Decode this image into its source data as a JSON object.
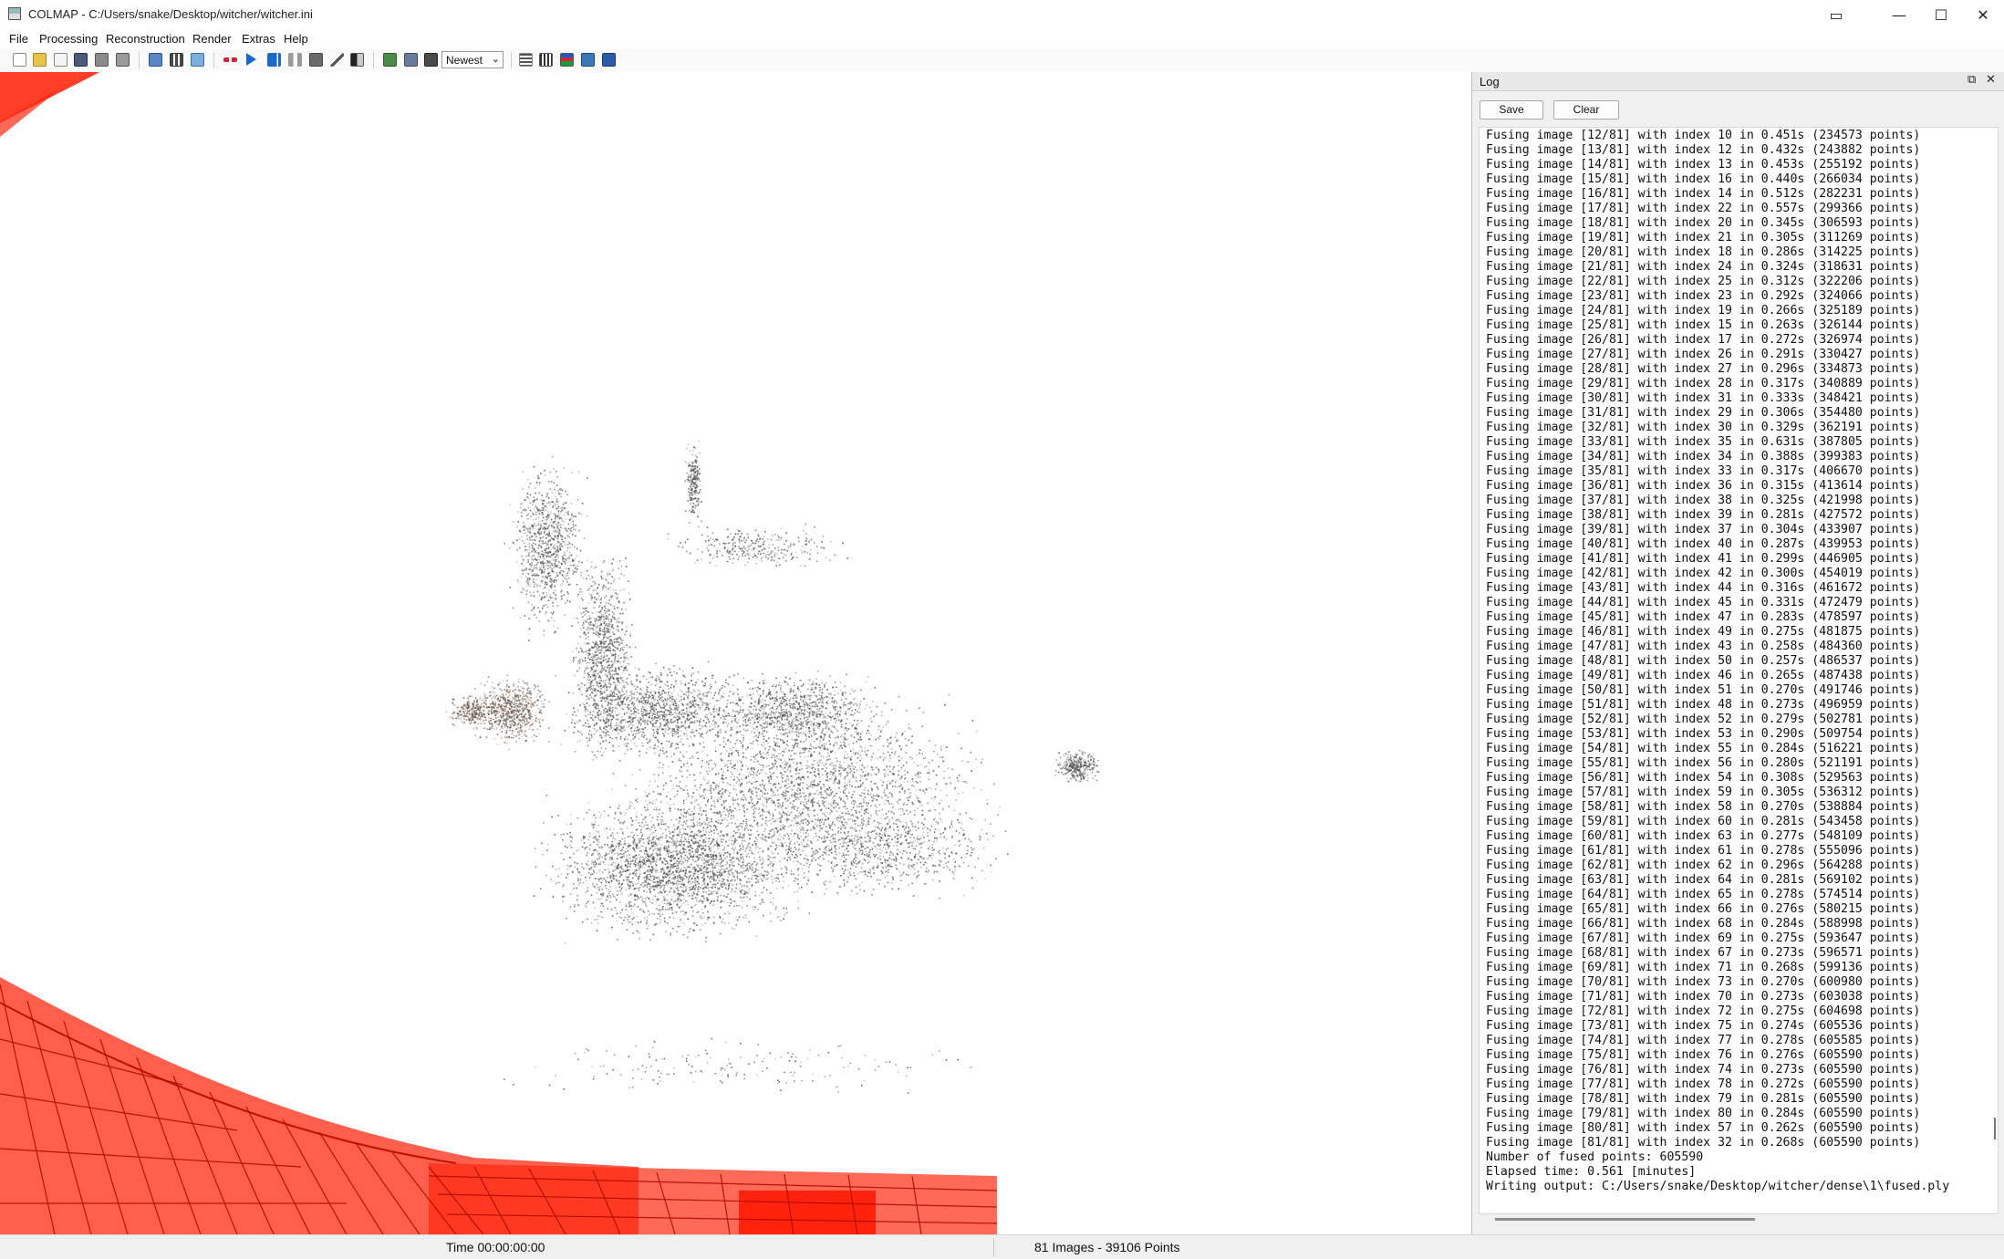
{
  "window": {
    "title": "COLMAP - C:/Users/snake/Desktop/witcher/witcher.ini"
  },
  "menu": [
    {
      "label": "File",
      "icon": ""
    },
    {
      "label": "Processing",
      "icon": ""
    },
    {
      "label": "Reconstruction",
      "icon": ""
    },
    {
      "label": "Render",
      "icon": ""
    },
    {
      "label": "Extras",
      "icon": ""
    },
    {
      "label": "Help",
      "icon": ""
    }
  ],
  "toolbar": {
    "icons": [
      "new-project-icon",
      "open-project-icon",
      "edit-project-icon",
      "save-project-icon",
      "import-icon",
      "export-icon",
      "feature-extraction-icon",
      "feature-matching-icon",
      "database-management-icon",
      "reconstruction-options-icon",
      "start-reconstruction-icon",
      "step-reconstruction-icon",
      "pause-reconstruction-icon",
      "bundle-adjustment-icon",
      "dense-reconstruction-icon",
      "render-options-icon",
      "render-toggle-icon",
      "grab-image-icon",
      "grab-movie-icon",
      "model-selector-icon",
      "reconstruction-stats-icon",
      "match-matrix-icon",
      "show-log-icon",
      "undistort-icon",
      "extras-icon",
      "help-icon"
    ],
    "model_select": "Newest"
  },
  "colors": {
    "camera_frame": "#ff2a10",
    "point_cloud": "#4a4a4a",
    "point_cloud_warm": "#7a5a48"
  },
  "log": {
    "title": "Log",
    "save_label": "Save",
    "clear_label": "Clear",
    "lines": [
      "Fusing image [12/81] with index 10 in 0.451s (234573 points)",
      "Fusing image [13/81] with index 12 in 0.432s (243882 points)",
      "Fusing image [14/81] with index 13 in 0.453s (255192 points)",
      "Fusing image [15/81] with index 16 in 0.440s (266034 points)",
      "Fusing image [16/81] with index 14 in 0.512s (282231 points)",
      "Fusing image [17/81] with index 22 in 0.557s (299366 points)",
      "Fusing image [18/81] with index 20 in 0.345s (306593 points)",
      "Fusing image [19/81] with index 21 in 0.305s (311269 points)",
      "Fusing image [20/81] with index 18 in 0.286s (314225 points)",
      "Fusing image [21/81] with index 24 in 0.324s (318631 points)",
      "Fusing image [22/81] with index 25 in 0.312s (322206 points)",
      "Fusing image [23/81] with index 23 in 0.292s (324066 points)",
      "Fusing image [24/81] with index 19 in 0.266s (325189 points)",
      "Fusing image [25/81] with index 15 in 0.263s (326144 points)",
      "Fusing image [26/81] with index 17 in 0.272s (326974 points)",
      "Fusing image [27/81] with index 26 in 0.291s (330427 points)",
      "Fusing image [28/81] with index 27 in 0.296s (334873 points)",
      "Fusing image [29/81] with index 28 in 0.317s (340889 points)",
      "Fusing image [30/81] with index 31 in 0.333s (348421 points)",
      "Fusing image [31/81] with index 29 in 0.306s (354480 points)",
      "Fusing image [32/81] with index 30 in 0.329s (362191 points)",
      "Fusing image [33/81] with index 35 in 0.631s (387805 points)",
      "Fusing image [34/81] with index 34 in 0.388s (399383 points)",
      "Fusing image [35/81] with index 33 in 0.317s (406670 points)",
      "Fusing image [36/81] with index 36 in 0.315s (413614 points)",
      "Fusing image [37/81] with index 38 in 0.325s (421998 points)",
      "Fusing image [38/81] with index 39 in 0.281s (427572 points)",
      "Fusing image [39/81] with index 37 in 0.304s (433907 points)",
      "Fusing image [40/81] with index 40 in 0.287s (439953 points)",
      "Fusing image [41/81] with index 41 in 0.299s (446905 points)",
      "Fusing image [42/81] with index 42 in 0.300s (454019 points)",
      "Fusing image [43/81] with index 44 in 0.316s (461672 points)",
      "Fusing image [44/81] with index 45 in 0.331s (472479 points)",
      "Fusing image [45/81] with index 47 in 0.283s (478597 points)",
      "Fusing image [46/81] with index 49 in 0.275s (481875 points)",
      "Fusing image [47/81] with index 43 in 0.258s (484360 points)",
      "Fusing image [48/81] with index 50 in 0.257s (486537 points)",
      "Fusing image [49/81] with index 46 in 0.265s (487438 points)",
      "Fusing image [50/81] with index 51 in 0.270s (491746 points)",
      "Fusing image [51/81] with index 48 in 0.273s (496959 points)",
      "Fusing image [52/81] with index 52 in 0.279s (502781 points)",
      "Fusing image [53/81] with index 53 in 0.290s (509754 points)",
      "Fusing image [54/81] with index 55 in 0.284s (516221 points)",
      "Fusing image [55/81] with index 56 in 0.280s (521191 points)",
      "Fusing image [56/81] with index 54 in 0.308s (529563 points)",
      "Fusing image [57/81] with index 59 in 0.305s (536312 points)",
      "Fusing image [58/81] with index 58 in 0.270s (538884 points)",
      "Fusing image [59/81] with index 60 in 0.281s (543458 points)",
      "Fusing image [60/81] with index 63 in 0.277s (548109 points)",
      "Fusing image [61/81] with index 61 in 0.278s (555096 points)",
      "Fusing image [62/81] with index 62 in 0.296s (564288 points)",
      "Fusing image [63/81] with index 64 in 0.281s (569102 points)",
      "Fusing image [64/81] with index 65 in 0.278s (574514 points)",
      "Fusing image [65/81] with index 66 in 0.276s (580215 points)",
      "Fusing image [66/81] with index 68 in 0.284s (588998 points)",
      "Fusing image [67/81] with index 69 in 0.275s (593647 points)",
      "Fusing image [68/81] with index 67 in 0.273s (596571 points)",
      "Fusing image [69/81] with index 71 in 0.268s (599136 points)",
      "Fusing image [70/81] with index 73 in 0.270s (600980 points)",
      "Fusing image [71/81] with index 70 in 0.273s (603038 points)",
      "Fusing image [72/81] with index 72 in 0.275s (604698 points)",
      "Fusing image [73/81] with index 75 in 0.274s (605536 points)",
      "Fusing image [74/81] with index 77 in 0.278s (605585 points)",
      "Fusing image [75/81] with index 76 in 0.276s (605590 points)",
      "Fusing image [76/81] with index 74 in 0.273s (605590 points)",
      "Fusing image [77/81] with index 78 in 0.272s (605590 points)",
      "Fusing image [78/81] with index 79 in 0.281s (605590 points)",
      "Fusing image [79/81] with index 80 in 0.284s (605590 points)",
      "Fusing image [80/81] with index 57 in 0.262s (605590 points)",
      "Fusing image [81/81] with index 32 in 0.268s (605590 points)",
      "Number of fused points: 605590",
      "Elapsed time: 0.561 [minutes]",
      "Writing output: C:/Users/snake/Desktop/witcher/dense\\1\\fused.ply"
    ]
  },
  "status": {
    "time": "Time 00:00:00:00",
    "summary": "81 Images - 39106 Points"
  }
}
